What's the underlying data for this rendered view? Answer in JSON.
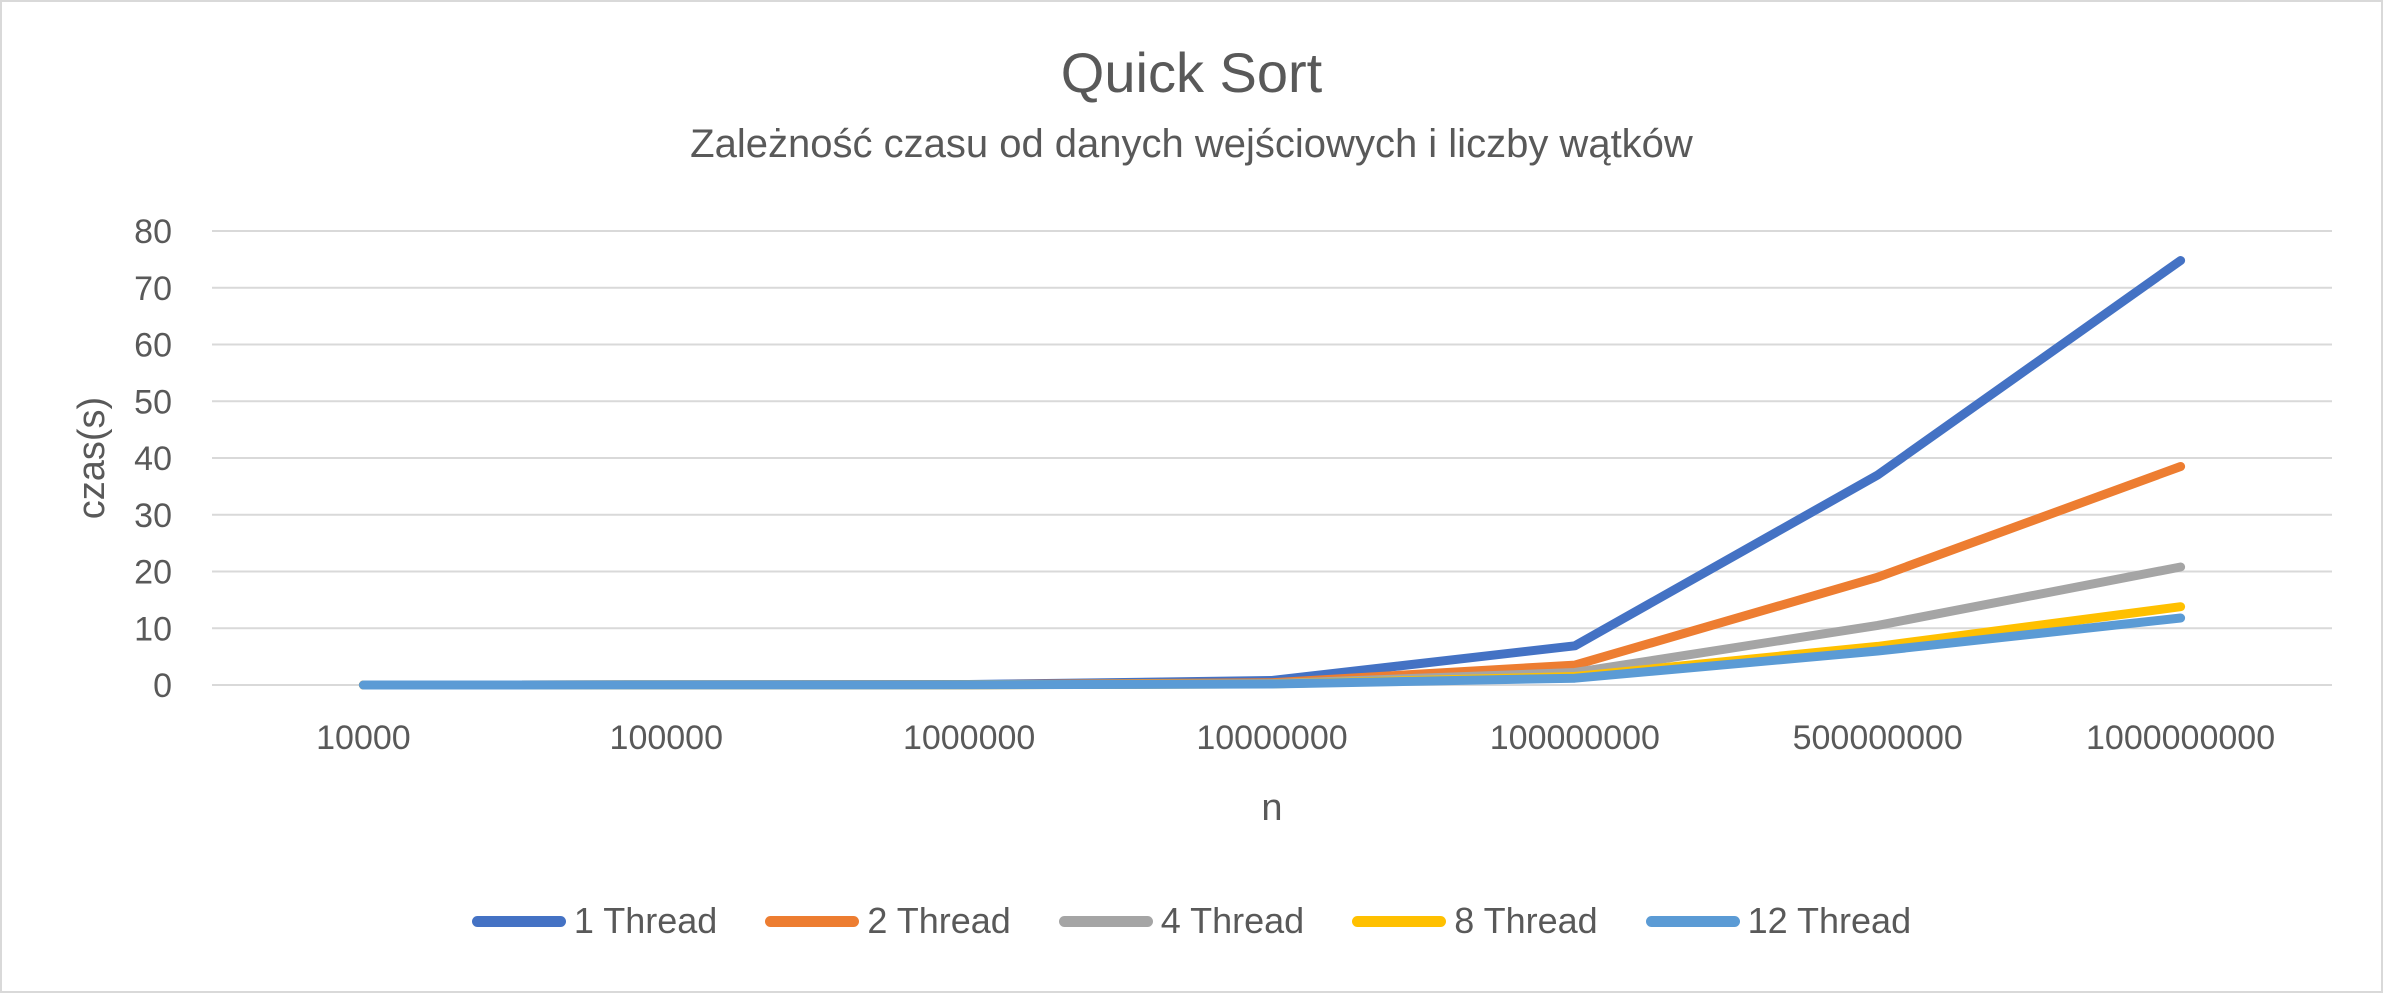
{
  "chart_data": {
    "type": "line",
    "title": "Quick Sort",
    "subtitle": "Zależność czasu od danych wejściowych i liczby wątków",
    "xlabel": "n",
    "ylabel": "czas(s)",
    "categories": [
      "10000",
      "100000",
      "1000000",
      "10000000",
      "100000000",
      "500000000",
      "1000000000"
    ],
    "ylim": [
      0,
      80
    ],
    "yticks": [
      0,
      10,
      20,
      30,
      40,
      50,
      60,
      70,
      80
    ],
    "grid": true,
    "legend_position": "bottom",
    "series": [
      {
        "name": "1 Thread",
        "color": "#4472C4",
        "values": [
          0.0,
          0.01,
          0.08,
          0.8,
          6.9,
          37.0,
          74.8
        ]
      },
      {
        "name": "2 Thread",
        "color": "#ED7D31",
        "values": [
          0.0,
          0.01,
          0.05,
          0.4,
          3.5,
          19.0,
          38.5
        ]
      },
      {
        "name": "4 Thread",
        "color": "#A5A5A5",
        "values": [
          0.0,
          0.01,
          0.04,
          0.25,
          2.2,
          10.5,
          20.8
        ]
      },
      {
        "name": "8 Thread",
        "color": "#FFC000",
        "values": [
          0.0,
          0.01,
          0.03,
          0.2,
          1.5,
          6.8,
          13.8
        ]
      },
      {
        "name": "12 Thread",
        "color": "#5B9BD5",
        "values": [
          0.0,
          0.01,
          0.03,
          0.18,
          1.2,
          6.0,
          11.8
        ]
      }
    ]
  }
}
